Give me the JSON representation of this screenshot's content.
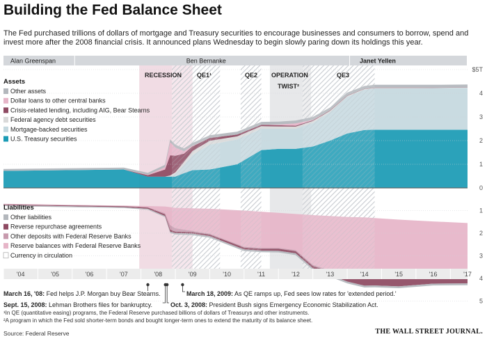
{
  "title": "Building the Fed Balance Sheet",
  "subtitle": "The Fed purchased trillions of dollars of mortgage and Treasury securities to encourage businesses and consumers to borrow, spend and invest more after the 2008 financial crisis. It announced plans Wednesday to begin slowly paring down its holdings this year.",
  "footnotes": {
    "qe": "¹In QE (quantitative easing) programs, the Federal Reserve purchased billions of dollars of Treasurys and other instruments.",
    "twist": "²A program in which the Fed sold shorter-term bonds and bought longer-term ones to extend the maturity of its balance sheet."
  },
  "source": "Source: Federal Reserve",
  "publisher": "THE WALL STREET JOURNAL.",
  "chart_data": {
    "type": "area",
    "x_ticks": [
      "'04",
      "'05",
      "'06",
      "'07",
      "'08",
      "'09",
      "'10",
      "'11",
      "'12",
      "'13",
      "'14",
      "'15",
      "'16",
      "'17"
    ],
    "x_range": [
      2004,
      2017.5
    ],
    "units_label": "$5T",
    "assets": {
      "label": "Assets",
      "y_ticks": [
        "$5T",
        "4",
        "3",
        "2",
        "1",
        "0"
      ],
      "ylim": [
        0,
        5
      ],
      "x": [
        2004.0,
        2007.5,
        2008.2,
        2008.7,
        2008.85,
        2009.0,
        2009.25,
        2009.5,
        2010.0,
        2010.8,
        2011.5,
        2012.0,
        2012.5,
        2013.0,
        2013.5,
        2014.0,
        2014.5,
        2014.8,
        2015.5,
        2016.5,
        2017.5
      ],
      "series": [
        {
          "name": "U.S. Treasury securities",
          "color": "#1b9bb5",
          "values": [
            0.72,
            0.78,
            0.48,
            0.48,
            0.48,
            0.48,
            0.62,
            0.75,
            0.78,
            1.0,
            1.6,
            1.65,
            1.65,
            1.75,
            2.0,
            2.3,
            2.45,
            2.46,
            2.46,
            2.46,
            2.46
          ]
        },
        {
          "name": "Mortgage-backed securities",
          "color": "#c5d8df",
          "values": [
            0,
            0,
            0,
            0,
            0,
            0.1,
            0.35,
            0.65,
            1.05,
            1.05,
            0.9,
            0.85,
            0.85,
            1.0,
            1.2,
            1.55,
            1.7,
            1.75,
            1.75,
            1.76,
            1.77
          ]
        },
        {
          "name": "Federal agency debt securities",
          "color": "#d9d9d9",
          "values": [
            0,
            0,
            0,
            0,
            0.05,
            0.08,
            0.13,
            0.16,
            0.16,
            0.13,
            0.11,
            0.1,
            0.09,
            0.08,
            0.06,
            0.04,
            0.03,
            0.02,
            0.02,
            0.01,
            0.01
          ]
        },
        {
          "name": "Crisis-related lending, including AIG, Bear Stearns",
          "color": "#8e4a62",
          "values": [
            0,
            0,
            0.06,
            0.3,
            0.85,
            0.7,
            0.35,
            0.2,
            0.12,
            0.08,
            0.06,
            0.05,
            0.04,
            0.03,
            0.02,
            0.02,
            0.01,
            0.01,
            0.01,
            0.01,
            0.01
          ]
        },
        {
          "name": "Dollar loans to other central banks",
          "color": "#e6b5c8",
          "values": [
            0,
            0,
            0.02,
            0.1,
            0.55,
            0.35,
            0.1,
            0.02,
            0,
            0,
            0,
            0.03,
            0.1,
            0.02,
            0,
            0,
            0,
            0,
            0,
            0,
            0
          ]
        },
        {
          "name": "Other assets",
          "color": "#b3b7bc",
          "values": [
            0.08,
            0.08,
            0.08,
            0.1,
            0.12,
            0.12,
            0.12,
            0.12,
            0.12,
            0.12,
            0.12,
            0.12,
            0.12,
            0.12,
            0.12,
            0.12,
            0.12,
            0.12,
            0.12,
            0.12,
            0.12
          ]
        }
      ]
    },
    "liabilities": {
      "label": "Liabilities",
      "y_ticks": [
        "1",
        "2",
        "3",
        "4",
        "5"
      ],
      "ylim": [
        0,
        5
      ],
      "x": [
        2004.0,
        2007.5,
        2008.2,
        2008.7,
        2008.85,
        2009.0,
        2009.5,
        2010.0,
        2011.0,
        2011.5,
        2012.0,
        2012.5,
        2013.0,
        2014.0,
        2014.5,
        2014.8,
        2015.5,
        2016.5,
        2017.5
      ],
      "series": [
        {
          "name": "Currency in circulation",
          "color": "#ffffff",
          "values": [
            0.7,
            0.78,
            0.8,
            0.82,
            0.85,
            0.88,
            0.9,
            0.92,
            1.0,
            1.05,
            1.1,
            1.15,
            1.2,
            1.28,
            1.3,
            1.33,
            1.4,
            1.48,
            1.55
          ]
        },
        {
          "name": "Reserve balances with Federal Reserve Banks",
          "color": "#e6b5c8",
          "values": [
            0.02,
            0.02,
            0.05,
            0.3,
            0.8,
            0.9,
            1.0,
            1.1,
            1.6,
            1.6,
            1.55,
            1.6,
            2.2,
            2.6,
            2.65,
            2.6,
            2.5,
            2.2,
            2.15
          ]
        },
        {
          "name": "Other deposits with Federal Reserve Banks",
          "color": "#c79aad",
          "values": [
            0.01,
            0.01,
            0.02,
            0.05,
            0.2,
            0.15,
            0.05,
            0.04,
            0.04,
            0.04,
            0.04,
            0.05,
            0.05,
            0.06,
            0.07,
            0.08,
            0.1,
            0.15,
            0.17
          ]
        },
        {
          "name": "Reverse repurchase agreements",
          "color": "#8e4a62",
          "values": [
            0.03,
            0.04,
            0.05,
            0.07,
            0.08,
            0.07,
            0.07,
            0.07,
            0.08,
            0.08,
            0.09,
            0.09,
            0.1,
            0.2,
            0.3,
            0.3,
            0.35,
            0.4,
            0.35
          ]
        },
        {
          "name": "Other liabilities",
          "color": "#b3b7bc",
          "values": [
            0.04,
            0.04,
            0.04,
            0.05,
            0.06,
            0.06,
            0.07,
            0.07,
            0.07,
            0.07,
            0.07,
            0.08,
            0.08,
            0.08,
            0.08,
            0.08,
            0.08,
            0.08,
            0.08
          ]
        }
      ]
    },
    "chairs": [
      {
        "name": "Alan Greenspan",
        "start": 2004.0,
        "end": 2006.08
      },
      {
        "name": "Ben Bernanke",
        "start": 2006.08,
        "end": 2014.08
      },
      {
        "name": "Janet Yellen",
        "start": 2014.08,
        "end": 2017.5
      }
    ],
    "periods": [
      {
        "name": "RECESSION",
        "start": 2007.95,
        "end": 2009.5,
        "style": "shade"
      },
      {
        "name": "QE1¹",
        "start": 2008.9,
        "end": 2010.3,
        "style": "hatch"
      },
      {
        "name": "QE2",
        "start": 2010.9,
        "end": 2011.5,
        "style": "hatch"
      },
      {
        "name": "OPERATION TWIST²",
        "start": 2011.75,
        "end": 2012.95,
        "style": "shade"
      },
      {
        "name": "QE3",
        "start": 2012.7,
        "end": 2014.8,
        "style": "hatch"
      }
    ],
    "events": [
      {
        "date": 2008.2,
        "text": "March 16, '08: Fed helps J.P. Morgan buy Bear Stearns."
      },
      {
        "date": 2008.71,
        "text": "Sept. 15, 2008: Lehman Brothers files for bankruptcy."
      },
      {
        "date": 2008.76,
        "text": "Oct. 3, 2008: President Bush signs Emergency Economic Stabilization Act."
      },
      {
        "date": 2009.21,
        "text": "March 18, 2009: As QE ramps up, Fed sees low rates for 'extended period.'"
      }
    ]
  }
}
